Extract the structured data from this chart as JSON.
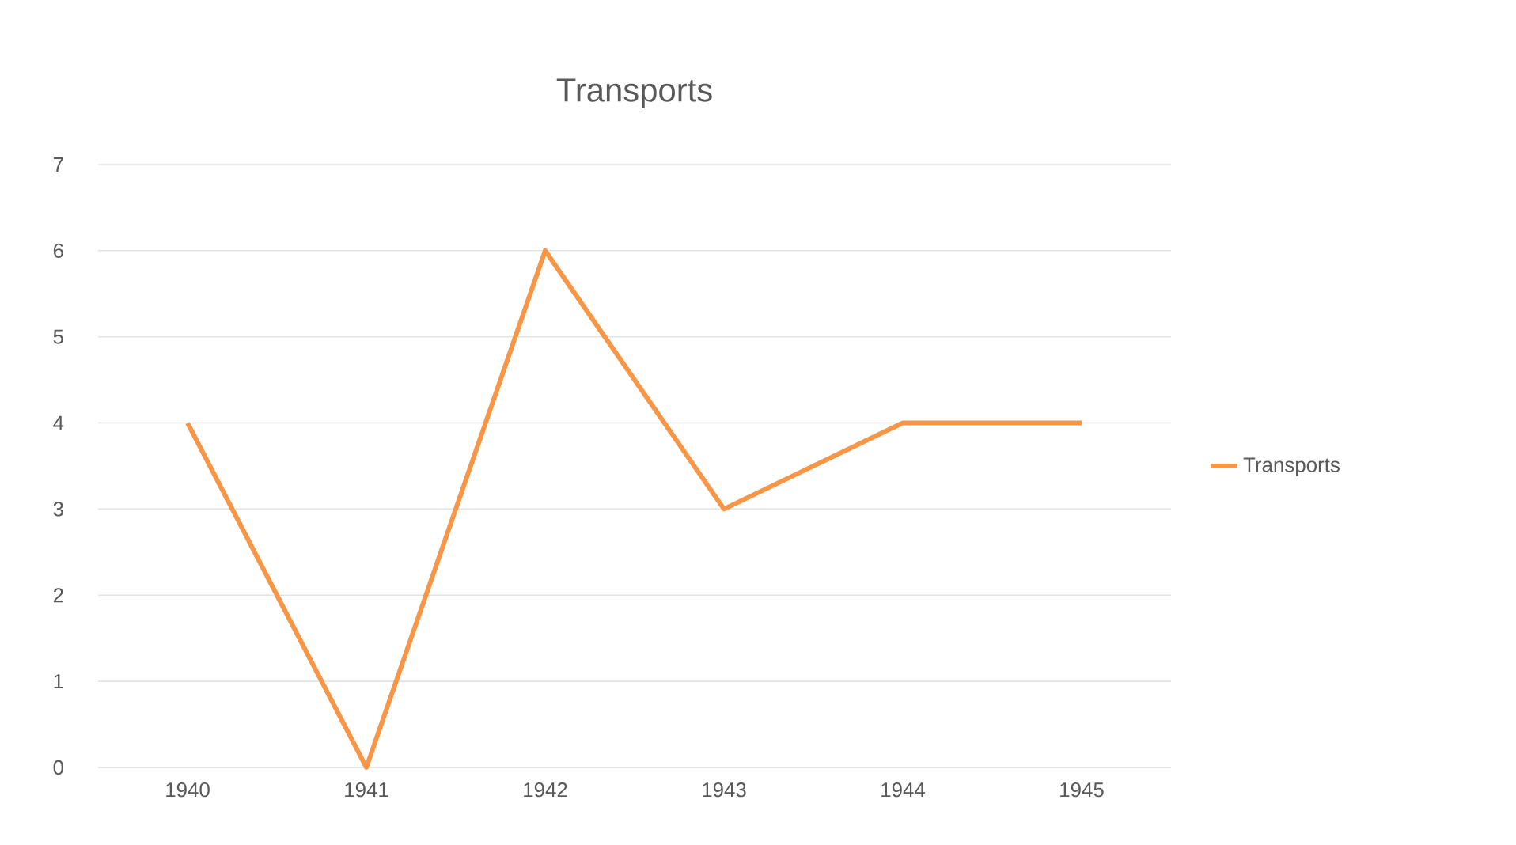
{
  "chart_data": {
    "type": "line",
    "title": "Transports",
    "categories": [
      "1940",
      "1941",
      "1942",
      "1943",
      "1944",
      "1945"
    ],
    "series": [
      {
        "name": "Transports",
        "color": "#f79646",
        "values": [
          4,
          0,
          6,
          3,
          4,
          4
        ]
      }
    ],
    "ylim": [
      0,
      7
    ],
    "yticks": [
      0,
      1,
      2,
      3,
      4,
      5,
      6,
      7
    ],
    "grid": "y",
    "legend": "right"
  }
}
